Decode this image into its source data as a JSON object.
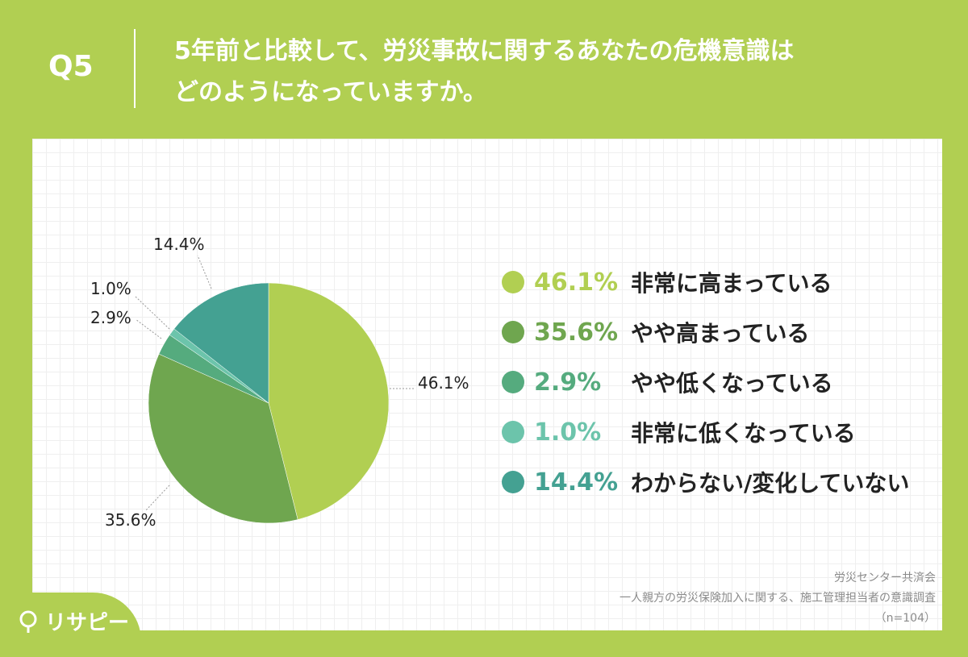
{
  "header": {
    "q_label": "Q5",
    "question_line1": "5年前と比較して、労災事故に関するあなたの危機意識は",
    "question_line2": "どのようになっていますか。"
  },
  "chart_data": {
    "type": "pie",
    "start_angle_deg": 0,
    "direction": "clockwise",
    "slices": [
      {
        "label": "非常に高まっている",
        "value": 46.1,
        "display": "46.1%",
        "color": "#b1cf52"
      },
      {
        "label": "やや高まっている",
        "value": 35.6,
        "display": "35.6%",
        "color": "#6fa64f"
      },
      {
        "label": "やや低くなっている",
        "value": 2.9,
        "display": "2.9%",
        "color": "#55ab7e"
      },
      {
        "label": "非常に低くなっている",
        "value": 1.0,
        "display": "1.0%",
        "color": "#6cc4ab"
      },
      {
        "label": "わからない/変化していない",
        "value": 14.4,
        "display": "14.4%",
        "color": "#44a192"
      }
    ]
  },
  "source": {
    "line1": "労災センター共済会",
    "line2": "一人親方の労災保険加入に関する、施工管理担当者の意識調査",
    "line3": "（n=104）"
  },
  "brand": {
    "name": "リサピー"
  },
  "colors": {
    "background": "#b1cf52",
    "panel": "#ffffff"
  }
}
